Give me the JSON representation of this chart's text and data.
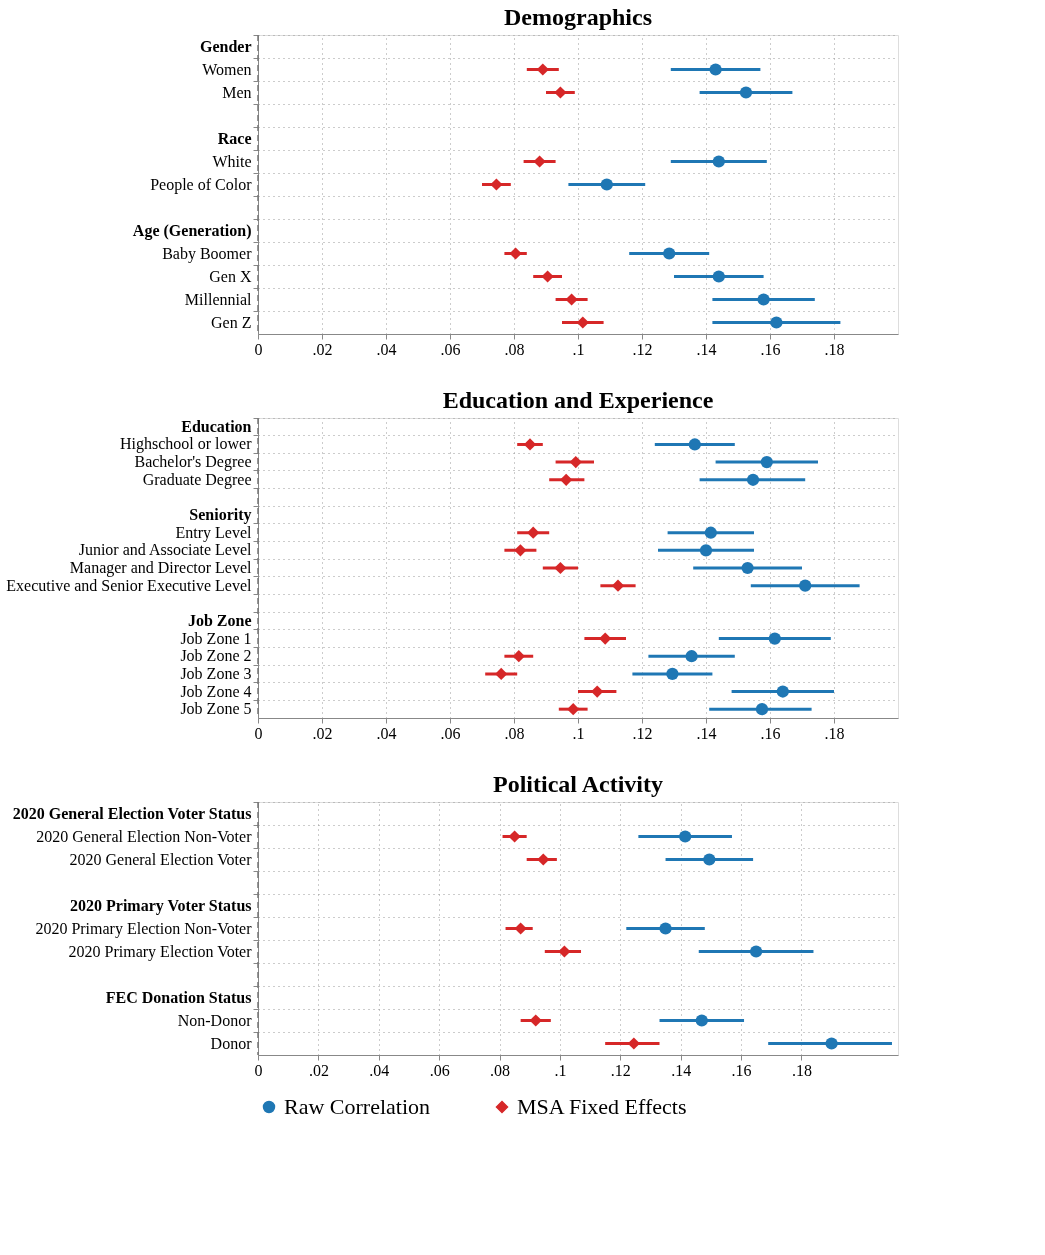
{
  "chart_data": [
    {
      "type": "scatter",
      "orientation": "horizontal",
      "title": "Demographics",
      "categories": [
        "Gender",
        "Women",
        "Men",
        null,
        "Race",
        "White",
        "People of Color",
        null,
        "Age (Generation)",
        "Baby Boomer",
        "Gen X",
        "Millennial",
        "Gen Z"
      ],
      "series": [
        {
          "color": "#1f77b4",
          "marker": "circle",
          "values": [
            null,
            0.143,
            0.1525,
            null,
            null,
            0.144,
            0.109,
            null,
            null,
            0.1285,
            0.144,
            0.158,
            0.162
          ],
          "errors": [
            null,
            [
              0.129,
              0.157
            ],
            [
              0.138,
              0.167
            ],
            null,
            null,
            [
              0.129,
              0.159
            ],
            [
              0.097,
              0.121
            ],
            null,
            null,
            [
              0.116,
              0.141
            ],
            [
              0.13,
              0.158
            ],
            [
              0.142,
              0.174
            ],
            [
              0.142,
              0.182
            ]
          ]
        },
        {
          "color": "#d62728",
          "marker": "diamond",
          "values": [
            null,
            0.089,
            0.0945,
            null,
            null,
            0.088,
            0.0745,
            null,
            null,
            0.0805,
            0.0905,
            0.098,
            0.1015
          ],
          "errors": [
            null,
            [
              0.084,
              0.094
            ],
            [
              0.09,
              0.099
            ],
            null,
            null,
            [
              0.083,
              0.093
            ],
            [
              0.07,
              0.079
            ],
            null,
            null,
            [
              0.077,
              0.084
            ],
            [
              0.086,
              0.095
            ],
            [
              0.093,
              0.103
            ],
            [
              0.095,
              0.108
            ]
          ]
        }
      ],
      "xlim": [
        0,
        0.2
      ],
      "xticks": [
        0,
        {
          "value": 0.02,
          "label": ".02"
        },
        {
          "value": 0.04,
          "label": ".04"
        },
        {
          "value": 0.06,
          "label": ".06"
        },
        {
          "value": 0.08,
          "label": ".08"
        },
        {
          "value": 0.1,
          "label": ".1"
        },
        {
          "value": 0.12,
          "label": ".12"
        },
        {
          "value": 0.14,
          "label": ".14"
        },
        {
          "value": 0.16,
          "label": ".16"
        },
        {
          "value": 0.18,
          "label": ".18"
        }
      ],
      "ref_lines": [
        {
          "axis": "x",
          "value": 0,
          "line_style": "dashed",
          "color": "#777777"
        }
      ],
      "grid": true
    },
    {
      "type": "scatter",
      "orientation": "horizontal",
      "title": "Education and Experience",
      "categories": [
        "Education",
        "Highschool or lower",
        "Bachelor's Degree",
        "Graduate Degree",
        null,
        "Seniority",
        "Entry Level",
        "Junior and Associate Level",
        "Manager and Director Level",
        "Executive and Senior Executive Level",
        null,
        "Job Zone",
        "Job Zone 1",
        "Job Zone 2",
        "Job Zone 3",
        "Job Zone 4",
        "Job Zone 5"
      ],
      "series": [
        {
          "color": "#1f77b4",
          "marker": "circle",
          "values": [
            null,
            0.1365,
            0.159,
            0.1547,
            null,
            null,
            0.1415,
            0.14,
            0.153,
            0.171,
            null,
            null,
            0.1615,
            0.1355,
            0.1295,
            0.164,
            0.1575
          ],
          "errors": [
            null,
            [
              0.124,
              0.149
            ],
            [
              0.143,
              0.175
            ],
            [
              0.138,
              0.171
            ],
            null,
            null,
            [
              0.128,
              0.155
            ],
            [
              0.125,
              0.155
            ],
            [
              0.136,
              0.17
            ],
            [
              0.154,
              0.188
            ],
            null,
            null,
            [
              0.144,
              0.179
            ],
            [
              0.122,
              0.149
            ],
            [
              0.117,
              0.142
            ],
            [
              0.148,
              0.18
            ],
            [
              0.141,
              0.173
            ]
          ]
        },
        {
          "color": "#d62728",
          "marker": "diamond",
          "values": [
            null,
            0.085,
            0.0993,
            0.0963,
            null,
            null,
            0.086,
            0.082,
            0.0945,
            0.1125,
            null,
            null,
            0.1085,
            0.0815,
            0.076,
            0.106,
            0.0985
          ],
          "errors": [
            null,
            [
              0.081,
              0.089
            ],
            [
              0.093,
              0.105
            ],
            [
              0.091,
              0.102
            ],
            null,
            null,
            [
              0.081,
              0.091
            ],
            [
              0.077,
              0.087
            ],
            [
              0.089,
              0.1
            ],
            [
              0.107,
              0.118
            ],
            null,
            null,
            [
              0.102,
              0.115
            ],
            [
              0.077,
              0.086
            ],
            [
              0.071,
              0.081
            ],
            [
              0.1,
              0.112
            ],
            [
              0.094,
              0.103
            ]
          ]
        }
      ],
      "xlim": [
        0,
        0.2
      ],
      "xticks": [
        0,
        {
          "value": 0.02,
          "label": ".02"
        },
        {
          "value": 0.04,
          "label": ".04"
        },
        {
          "value": 0.06,
          "label": ".06"
        },
        {
          "value": 0.08,
          "label": ".08"
        },
        {
          "value": 0.1,
          "label": ".1"
        },
        {
          "value": 0.12,
          "label": ".12"
        },
        {
          "value": 0.14,
          "label": ".14"
        },
        {
          "value": 0.16,
          "label": ".16"
        },
        {
          "value": 0.18,
          "label": ".18"
        }
      ],
      "ref_lines": [
        {
          "axis": "x",
          "value": 0,
          "line_style": "dashed",
          "color": "#777777"
        }
      ],
      "grid": true
    },
    {
      "type": "scatter",
      "orientation": "horizontal",
      "title": "Political Activity",
      "categories": [
        "2020 General Election Voter Status",
        "2020 General Election Non-Voter",
        "2020 General Election Voter",
        null,
        "2020 Primary Voter Status",
        "2020 Primary Election Non-Voter",
        "2020 Primary Election Voter",
        null,
        "FEC Donation Status",
        "Non-Donor",
        "Donor"
      ],
      "series": [
        {
          "name": "Raw Correlation",
          "color": "#1f77b4",
          "marker": "circle",
          "values": [
            null,
            0.1415,
            0.1495,
            null,
            null,
            0.135,
            0.165,
            null,
            null,
            0.147,
            0.19
          ],
          "errors": [
            null,
            [
              0.126,
              0.157
            ],
            [
              0.135,
              0.164
            ],
            null,
            null,
            [
              0.122,
              0.148
            ],
            [
              0.146,
              0.184
            ],
            null,
            null,
            [
              0.133,
              0.161
            ],
            [
              0.169,
              0.21
            ]
          ]
        },
        {
          "name": "MSA Fixed Effects",
          "color": "#d62728",
          "marker": "diamond",
          "values": [
            null,
            0.085,
            0.0945,
            null,
            null,
            0.087,
            0.1015,
            null,
            null,
            0.092,
            0.1245
          ],
          "errors": [
            null,
            [
              0.081,
              0.089
            ],
            [
              0.089,
              0.099
            ],
            null,
            null,
            [
              0.082,
              0.091
            ],
            [
              0.095,
              0.107
            ],
            null,
            null,
            [
              0.087,
              0.097
            ],
            [
              0.115,
              0.133
            ]
          ]
        }
      ],
      "xlim": [
        0,
        0.212
      ],
      "xticks": [
        0,
        {
          "value": 0.02,
          "label": ".02"
        },
        {
          "value": 0.04,
          "label": ".04"
        },
        {
          "value": 0.06,
          "label": ".06"
        },
        {
          "value": 0.08,
          "label": ".08"
        },
        {
          "value": 0.1,
          "label": ".1"
        },
        {
          "value": 0.12,
          "label": ".12"
        },
        {
          "value": 0.14,
          "label": ".14"
        },
        {
          "value": 0.16,
          "label": ".16"
        },
        {
          "value": 0.18,
          "label": ".18"
        }
      ],
      "ref_lines": [
        {
          "axis": "x",
          "value": 0,
          "line_style": "dashed",
          "color": "#777777"
        }
      ],
      "grid": true,
      "legend": "bottom"
    }
  ]
}
